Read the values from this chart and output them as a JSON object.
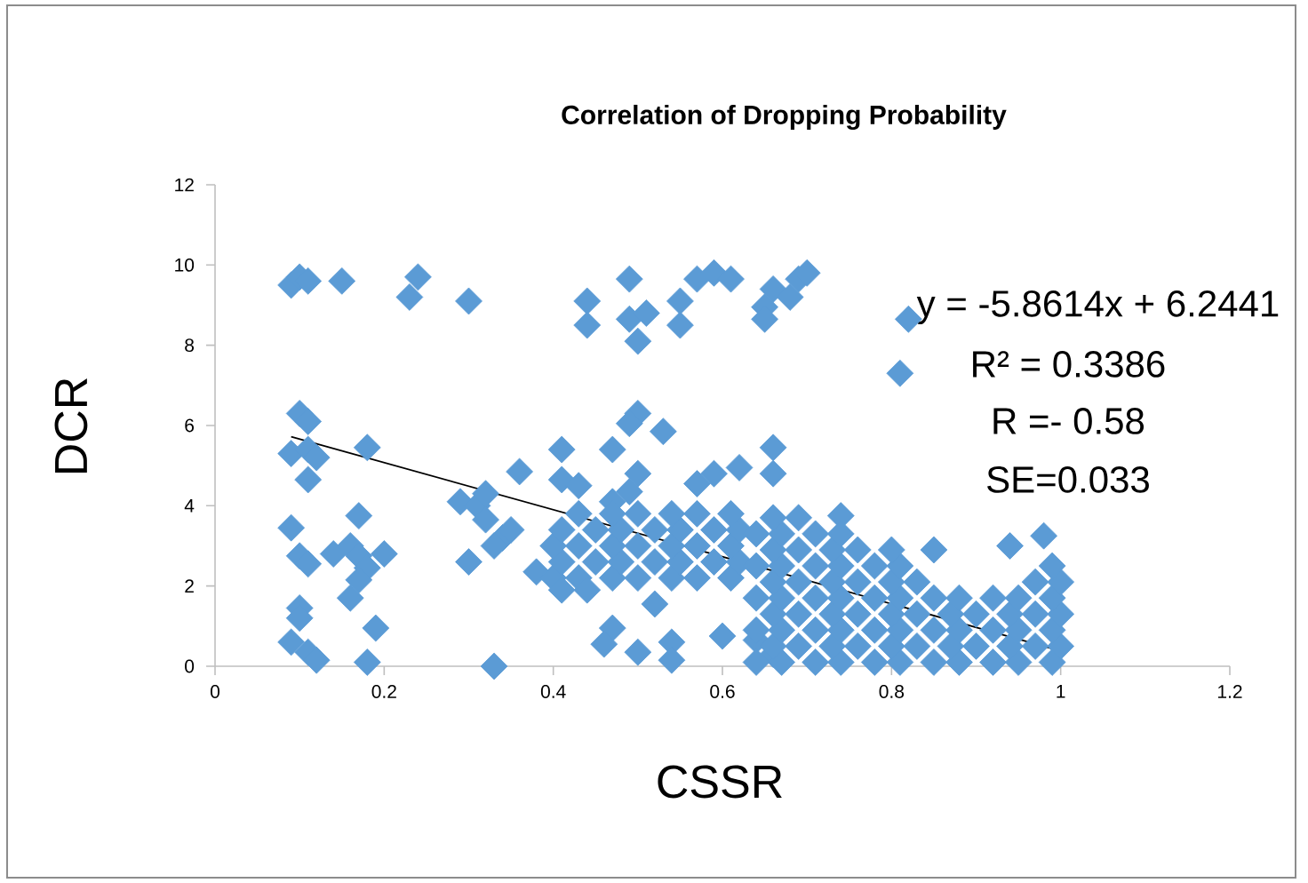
{
  "chart_data": {
    "type": "scatter",
    "title": "Correlation of Dropping Probability",
    "xlabel": "CSSR",
    "ylabel": "DCR",
    "xlim": [
      0,
      1.2
    ],
    "xticks": [
      0,
      0.2,
      0.4,
      0.6,
      0.8,
      1,
      1.2
    ],
    "ylim": [
      0,
      12
    ],
    "yticks": [
      0,
      2,
      4,
      6,
      8,
      10,
      12
    ],
    "marker": "diamond",
    "series": [
      {
        "color": "#5b9bd5",
        "x": [
          0.09,
          0.1,
          0.11,
          0.15,
          0.24,
          0.23,
          0.3,
          0.1,
          0.11,
          0.09,
          0.11,
          0.12,
          0.11,
          0.18,
          0.09,
          0.17,
          0.1,
          0.11,
          0.14,
          0.16,
          0.17,
          0.18,
          0.2,
          0.17,
          0.16,
          0.1,
          0.1,
          0.09,
          0.11,
          0.12,
          0.19,
          0.18,
          0.29,
          0.31,
          0.32,
          0.32,
          0.36,
          0.3,
          0.34,
          0.35,
          0.33,
          0.38,
          0.33,
          0.41,
          0.41,
          0.44,
          0.44,
          0.49,
          0.49,
          0.5,
          0.51,
          0.55,
          0.55,
          0.57,
          0.59,
          0.61,
          0.65,
          0.65,
          0.66,
          0.69,
          0.7,
          0.68,
          0.5,
          0.49,
          0.53,
          0.43,
          0.47,
          0.5,
          0.47,
          0.49,
          0.57,
          0.59,
          0.62,
          0.66,
          0.66,
          0.74,
          0.52,
          0.47,
          0.46,
          0.5,
          0.54,
          0.54,
          0.6,
          0.64,
          0.66,
          0.82,
          0.81,
          0.85,
          0.94,
          0.98,
          0.4,
          0.43,
          0.47,
          0.5,
          0.54,
          0.57,
          0.61,
          0.41,
          0.45,
          0.48,
          0.52,
          0.55,
          0.59,
          0.62,
          0.4,
          0.43,
          0.47,
          0.5,
          0.54,
          0.57,
          0.61,
          0.41,
          0.45,
          0.48,
          0.52,
          0.55,
          0.59,
          0.62,
          0.43,
          0.47,
          0.5,
          0.54,
          0.57,
          0.61,
          0.41,
          0.44,
          0.64,
          0.67,
          0.71,
          0.74,
          0.78,
          0.81,
          0.85,
          0.88,
          0.92,
          0.95,
          0.99,
          0.66,
          0.69,
          0.73,
          0.76,
          0.8,
          0.83,
          0.87,
          0.9,
          0.94,
          0.97,
          1.0,
          0.64,
          0.67,
          0.71,
          0.74,
          0.78,
          0.81,
          0.85,
          0.88,
          0.92,
          0.95,
          0.99,
          0.66,
          0.69,
          0.73,
          0.76,
          0.8,
          0.83,
          0.87,
          0.9,
          0.94,
          0.97,
          1.0,
          0.64,
          0.67,
          0.71,
          0.74,
          0.78,
          0.81,
          0.85,
          0.88,
          0.92,
          0.95,
          0.99,
          0.66,
          0.69,
          0.73,
          0.76,
          0.8,
          0.83,
          0.97,
          1.0,
          0.64,
          0.67,
          0.71,
          0.74,
          0.78,
          0.81,
          0.99,
          0.66,
          0.69,
          0.73,
          0.76,
          0.8,
          0.64,
          0.67,
          0.71,
          0.74,
          0.66,
          0.69
        ],
        "values": [
          9.5,
          9.7,
          9.6,
          9.6,
          9.7,
          9.2,
          9.1,
          6.3,
          6.1,
          5.3,
          5.4,
          5.2,
          4.65,
          5.45,
          3.45,
          3.75,
          2.75,
          2.55,
          2.8,
          3.0,
          2.75,
          2.45,
          2.8,
          2.15,
          1.7,
          1.45,
          1.2,
          0.6,
          0.35,
          0.15,
          0.95,
          0.1,
          4.1,
          4.0,
          4.3,
          3.65,
          4.85,
          2.6,
          3.2,
          3.4,
          3.0,
          2.35,
          0,
          5.4,
          4.65,
          9.1,
          8.5,
          9.65,
          8.65,
          8.1,
          8.8,
          8.5,
          9.1,
          9.65,
          9.8,
          9.65,
          8.95,
          8.65,
          9.4,
          9.65,
          9.8,
          9.2,
          6.3,
          6.05,
          5.85,
          4.5,
          5.4,
          4.8,
          4.1,
          4.35,
          4.55,
          4.8,
          4.95,
          5.45,
          4.8,
          3.75,
          1.55,
          0.95,
          0.55,
          0.35,
          0.6,
          0.15,
          0.75,
          0.65,
          0.3,
          8.65,
          7.3,
          2.9,
          3.0,
          3.25,
          2.2,
          2.2,
          2.2,
          2.2,
          2.2,
          2.2,
          2.2,
          2.6,
          2.6,
          2.6,
          2.6,
          2.6,
          2.6,
          2.6,
          3.0,
          3.0,
          3.0,
          3.0,
          3.0,
          3.0,
          3.0,
          3.4,
          3.4,
          3.4,
          3.4,
          3.4,
          3.4,
          3.4,
          3.8,
          3.8,
          3.8,
          3.8,
          3.8,
          3.8,
          1.9,
          1.9,
          0.1,
          0.1,
          0.1,
          0.1,
          0.1,
          0.1,
          0.1,
          0.1,
          0.1,
          0.1,
          0.1,
          0.5,
          0.5,
          0.5,
          0.5,
          0.5,
          0.5,
          0.5,
          0.5,
          0.5,
          0.5,
          0.5,
          0.9,
          0.9,
          0.9,
          0.9,
          0.9,
          0.9,
          0.9,
          0.9,
          0.9,
          0.9,
          0.9,
          1.3,
          1.3,
          1.3,
          1.3,
          1.3,
          1.3,
          1.3,
          1.3,
          1.3,
          1.3,
          1.3,
          1.7,
          1.7,
          1.7,
          1.7,
          1.7,
          1.7,
          1.7,
          1.7,
          1.7,
          1.7,
          1.7,
          2.1,
          2.1,
          2.1,
          2.1,
          2.1,
          2.1,
          2.1,
          2.1,
          2.5,
          2.5,
          2.5,
          2.5,
          2.5,
          2.5,
          2.5,
          2.9,
          2.9,
          2.9,
          2.9,
          2.9,
          3.3,
          3.3,
          3.3,
          3.3,
          3.7,
          3.7
        ]
      },
      {
        "type": "line",
        "color": "#000000",
        "marker": "none",
        "x": [
          0.09,
          0.99
        ],
        "values": [
          5.72,
          0.44
        ]
      }
    ],
    "annotations": [
      "y = -5.8614x + 6.2441",
      "R² = 0.3386",
      "R =- 0.58",
      "SE=0.033"
    ]
  }
}
